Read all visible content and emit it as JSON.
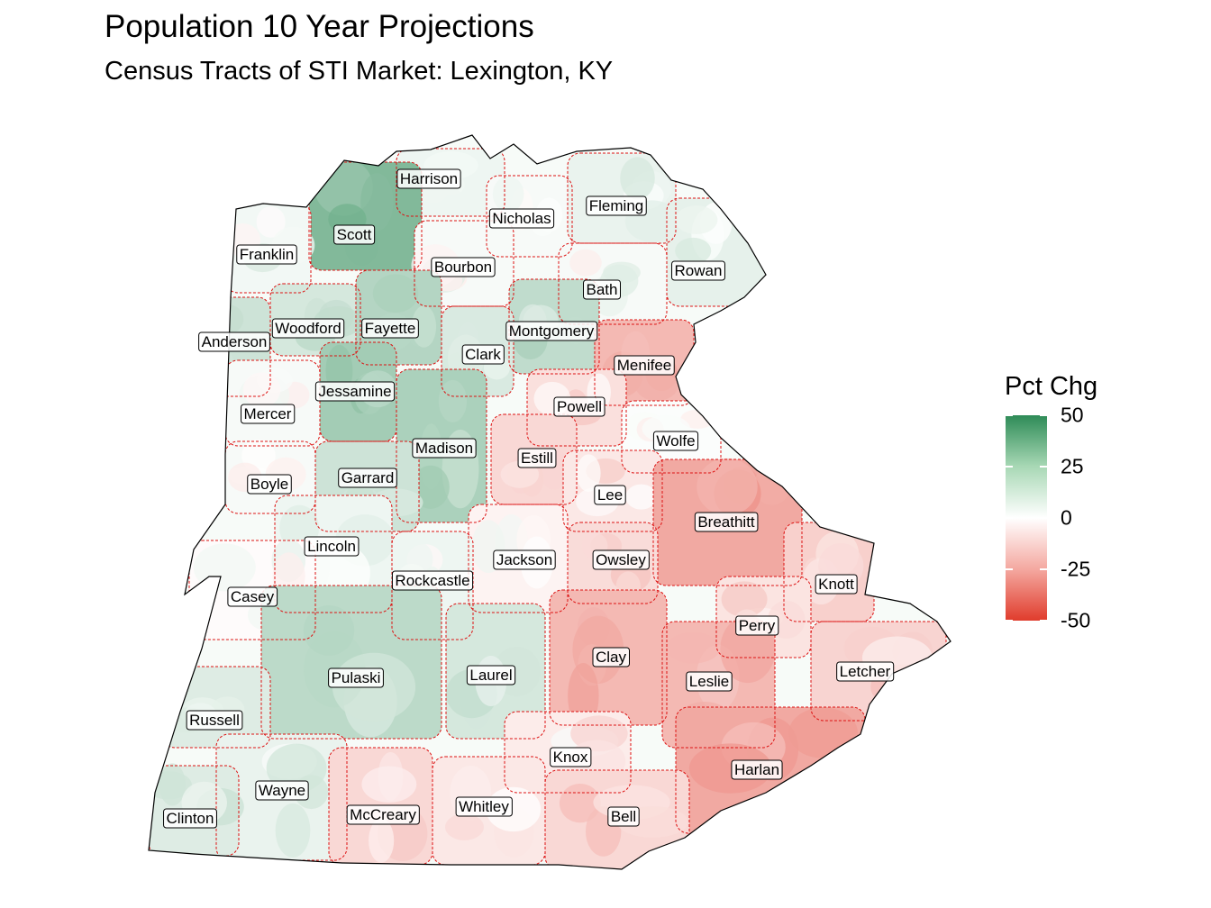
{
  "header": {
    "title": "Population 10 Year Projections",
    "subtitle": "Census Tracts of STI Market: Lexington, KY"
  },
  "legend": {
    "title": "Pct Chg",
    "ticks": [
      {
        "value": 50,
        "label": "50"
      },
      {
        "value": 25,
        "label": "25"
      },
      {
        "value": 0,
        "label": "0"
      },
      {
        "value": -25,
        "label": "-25"
      },
      {
        "value": -50,
        "label": "-50"
      }
    ],
    "colors": {
      "high": "#2e8b57",
      "mid": "#ffffff",
      "low": "#e03c2c"
    },
    "range": [
      -50,
      50
    ]
  },
  "map": {
    "boundary_color": "#dd1111",
    "outline_color": "#000000",
    "counties": [
      {
        "name": "Harrison",
        "pct": 4
      },
      {
        "name": "Scott",
        "pct": 30
      },
      {
        "name": "Nicholas",
        "pct": 2
      },
      {
        "name": "Fleming",
        "pct": 5
      },
      {
        "name": "Franklin",
        "pct": 3
      },
      {
        "name": "Bourbon",
        "pct": 2
      },
      {
        "name": "Rowan",
        "pct": 6
      },
      {
        "name": "Bath",
        "pct": 2
      },
      {
        "name": "Woodford",
        "pct": 10
      },
      {
        "name": "Fayette",
        "pct": 18
      },
      {
        "name": "Anderson",
        "pct": 12
      },
      {
        "name": "Montgomery",
        "pct": 15
      },
      {
        "name": "Clark",
        "pct": 9
      },
      {
        "name": "Menifee",
        "pct": -18
      },
      {
        "name": "Jessamine",
        "pct": 22
      },
      {
        "name": "Mercer",
        "pct": 2
      },
      {
        "name": "Powell",
        "pct": -8
      },
      {
        "name": "Madison",
        "pct": 20
      },
      {
        "name": "Wolfe",
        "pct": 1
      },
      {
        "name": "Estill",
        "pct": -10
      },
      {
        "name": "Boyle",
        "pct": 2
      },
      {
        "name": "Garrard",
        "pct": 12
      },
      {
        "name": "Lee",
        "pct": -6
      },
      {
        "name": "Breathitt",
        "pct": -22
      },
      {
        "name": "Lincoln",
        "pct": 4
      },
      {
        "name": "Jackson",
        "pct": -3
      },
      {
        "name": "Owsley",
        "pct": -9
      },
      {
        "name": "Rockcastle",
        "pct": 4
      },
      {
        "name": "Knott",
        "pct": -12
      },
      {
        "name": "Casey",
        "pct": -1
      },
      {
        "name": "Perry",
        "pct": -7
      },
      {
        "name": "Clay",
        "pct": -18
      },
      {
        "name": "Letcher",
        "pct": -11
      },
      {
        "name": "Pulaski",
        "pct": 16
      },
      {
        "name": "Laurel",
        "pct": 10
      },
      {
        "name": "Leslie",
        "pct": -18
      },
      {
        "name": "Russell",
        "pct": 8
      },
      {
        "name": "Knox",
        "pct": -5
      },
      {
        "name": "Harlan",
        "pct": -22
      },
      {
        "name": "Wayne",
        "pct": 5
      },
      {
        "name": "Whitley",
        "pct": -6
      },
      {
        "name": "McCreary",
        "pct": -10
      },
      {
        "name": "Bell",
        "pct": -10
      },
      {
        "name": "Clinton",
        "pct": 8
      }
    ]
  }
}
